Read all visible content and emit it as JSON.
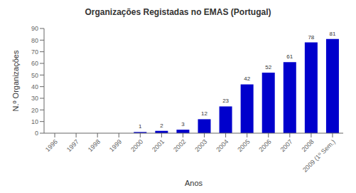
{
  "chart_data": {
    "type": "bar",
    "title": "Organizações Registadas no EMAS (Portugal)",
    "xlabel": "Anos",
    "ylabel": "N.º Organizações",
    "categories": [
      "1996",
      "1997",
      "1998",
      "1999",
      "2000",
      "2001",
      "2002",
      "2003",
      "2004",
      "2005",
      "2006",
      "2007",
      "2008",
      "2009 (1º Sem.)"
    ],
    "values": [
      0,
      0,
      0,
      0,
      1,
      2,
      3,
      12,
      23,
      42,
      52,
      61,
      78,
      81
    ],
    "color": "#0000CC",
    "ylim": [
      0,
      90
    ],
    "yticks": [
      0,
      10,
      20,
      30,
      40,
      50,
      60,
      70,
      80,
      90
    ],
    "grid": false,
    "data_labels": true
  }
}
